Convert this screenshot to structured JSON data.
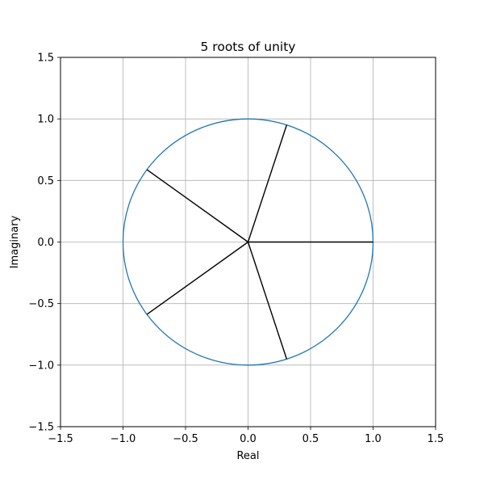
{
  "chart_data": {
    "type": "line",
    "title": "5 roots of unity",
    "xlabel": "Real",
    "ylabel": "Imaginary",
    "xlim": [
      -1.5,
      1.5
    ],
    "ylim": [
      -1.5,
      1.5
    ],
    "grid": true,
    "x_ticks": [
      -1.5,
      -1.0,
      -0.5,
      0.0,
      0.5,
      1.0,
      1.5
    ],
    "y_ticks": [
      -1.5,
      -1.0,
      -0.5,
      0.0,
      0.5,
      1.0,
      1.5
    ],
    "x_tick_labels": [
      "−1.5",
      "−1.0",
      "−0.5",
      "0.0",
      "0.5",
      "1.0",
      "1.5"
    ],
    "y_tick_labels": [
      "−1.5",
      "−1.0",
      "−0.5",
      "0.0",
      "0.5",
      "1.0",
      "1.5"
    ],
    "unit_circle": {
      "center": [
        0,
        0
      ],
      "radius": 1.0,
      "color": "#1f77b4"
    },
    "spokes": {
      "color": "#000000",
      "points": [
        {
          "x": 1.0,
          "y": 0.0
        },
        {
          "x": 0.309,
          "y": 0.951
        },
        {
          "x": -0.809,
          "y": 0.588
        },
        {
          "x": -0.809,
          "y": -0.588
        },
        {
          "x": 0.309,
          "y": -0.951
        }
      ]
    },
    "grid_color": "#b0b0b0"
  }
}
